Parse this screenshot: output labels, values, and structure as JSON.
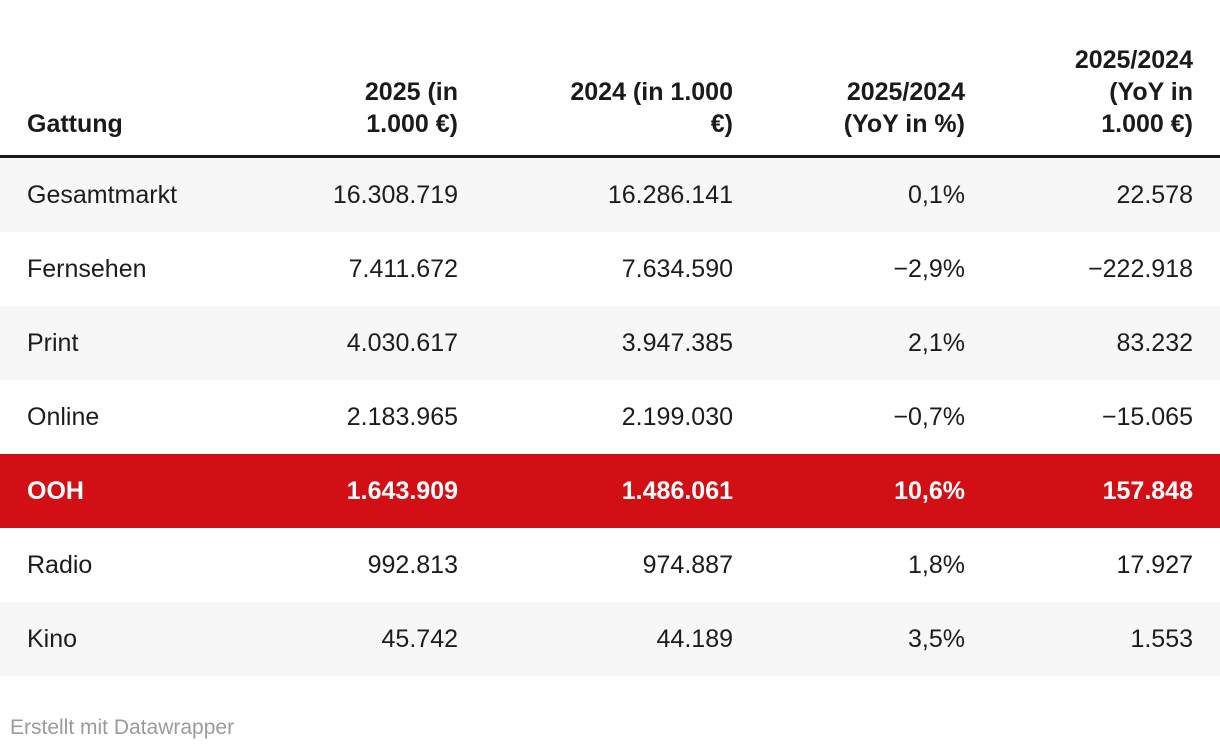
{
  "colors": {
    "highlight": "#d20f14",
    "stripe": "#f7f7f7",
    "attribution": "#9b9b9b",
    "header_rule": "#1a1a1a",
    "text": "#1c1c1c"
  },
  "table": {
    "columns": [
      {
        "label": "Gattung",
        "lines": [
          "Gattung"
        ]
      },
      {
        "label": "2025 (in 1.000 €)",
        "lines": [
          "2025 (in",
          "1.000 €)"
        ]
      },
      {
        "label": "2024 (in 1.000 €)",
        "lines": [
          "2024 (in 1.000",
          "€)"
        ]
      },
      {
        "label": "2025/2024 (YoY in %)",
        "lines": [
          "2025/2024",
          "(YoY in %)"
        ]
      },
      {
        "label": "2025/2024 (YoY in 1.000 €)",
        "lines": [
          "2025/2024",
          "(YoY in",
          "1.000 €)"
        ]
      }
    ],
    "rows": [
      {
        "highlight": false,
        "cells": [
          "Gesamtmarkt",
          "16.308.719",
          "16.286.141",
          "0,1%",
          "22.578"
        ]
      },
      {
        "highlight": false,
        "cells": [
          "Fernsehen",
          "7.411.672",
          "7.634.590",
          "−2,9%",
          "−222.918"
        ]
      },
      {
        "highlight": false,
        "cells": [
          "Print",
          "4.030.617",
          "3.947.385",
          "2,1%",
          "83.232"
        ]
      },
      {
        "highlight": false,
        "cells": [
          "Online",
          "2.183.965",
          "2.199.030",
          "−0,7%",
          "−15.065"
        ]
      },
      {
        "highlight": true,
        "cells": [
          "OOH",
          "1.643.909",
          "1.486.061",
          "10,6%",
          "157.848"
        ]
      },
      {
        "highlight": false,
        "cells": [
          "Radio",
          "992.813",
          "974.887",
          "1,8%",
          "17.927"
        ]
      },
      {
        "highlight": false,
        "cells": [
          "Kino",
          "45.742",
          "44.189",
          "3,5%",
          "1.553"
        ]
      }
    ]
  },
  "footer": {
    "attribution": "Erstellt mit Datawrapper"
  },
  "chart_data": {
    "type": "table",
    "title": "",
    "columns": [
      "Gattung",
      "2025 (in 1.000 €)",
      "2024 (in 1.000 €)",
      "2025/2024 (YoY in %)",
      "2025/2024 (YoY in 1.000 €)"
    ],
    "categories": [
      "Gesamtmarkt",
      "Fernsehen",
      "Print",
      "Online",
      "OOH",
      "Radio",
      "Kino"
    ],
    "series": [
      {
        "name": "2025 (in 1.000 €)",
        "values": [
          16308719,
          7411672,
          4030617,
          2183965,
          1643909,
          992813,
          45742
        ]
      },
      {
        "name": "2024 (in 1.000 €)",
        "values": [
          16286141,
          7634590,
          3947385,
          2199030,
          1486061,
          974887,
          44189
        ]
      },
      {
        "name": "2025/2024 (YoY in %)",
        "values": [
          0.1,
          -2.9,
          2.1,
          -0.7,
          10.6,
          1.8,
          3.5
        ]
      },
      {
        "name": "2025/2024 (YoY in 1.000 €)",
        "values": [
          22578,
          -222918,
          83232,
          -15065,
          157848,
          17927,
          1553
        ]
      }
    ],
    "highlighted_row": "OOH",
    "layout": {
      "striped_rows": true,
      "header_rule": true,
      "number_format": "de-DE"
    }
  }
}
